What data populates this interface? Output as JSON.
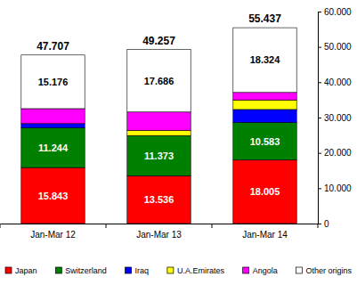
{
  "chart_data": {
    "type": "bar",
    "stacked": true,
    "legend": "bottom",
    "categories": [
      "Jan-Mar 12",
      "Jan-Mar 13",
      "Jan-Mar 14"
    ],
    "series": [
      {
        "name": "Japan",
        "color": "#ff0000",
        "values": [
          15843,
          13536,
          18005
        ],
        "data_labels": true,
        "value_labels": [
          "15.843",
          "13.536",
          "18.005"
        ]
      },
      {
        "name": "Switzerland",
        "color": "#008000",
        "values": [
          11244,
          11373,
          10583
        ],
        "data_labels": true,
        "value_labels": [
          "11.244",
          "11.373",
          "10.583"
        ]
      },
      {
        "name": "Iraq",
        "color": "#0000ff",
        "values": [
          1200,
          0,
          3700
        ],
        "data_labels": false
      },
      {
        "name": "U.A.Emirates",
        "color": "#ffff00",
        "values": [
          0,
          1500,
          2700
        ],
        "data_labels": false
      },
      {
        "name": "Angola",
        "color": "#ff00ff",
        "values": [
          4244,
          5162,
          2125
        ],
        "data_labels": false
      },
      {
        "name": "Other origins",
        "color": "#ffffff",
        "values": [
          15176,
          17686,
          18324
        ],
        "data_labels": true,
        "value_labels": [
          "15.176",
          "17.686",
          "18.324"
        ]
      }
    ],
    "totals": [
      47707,
      49257,
      55437
    ],
    "total_labels": [
      "47.707",
      "49.257",
      "55.437"
    ],
    "ylim": [
      0,
      60000
    ],
    "yticks": [
      0,
      {
        "value": 10000,
        "label": "10.000"
      },
      {
        "value": 20000,
        "label": "20.000"
      },
      {
        "value": 30000,
        "label": "30.000"
      },
      {
        "value": 40000,
        "label": "40.000"
      },
      {
        "value": 50000,
        "label": "50.000"
      },
      {
        "value": 60000,
        "label": "60.000"
      }
    ]
  }
}
